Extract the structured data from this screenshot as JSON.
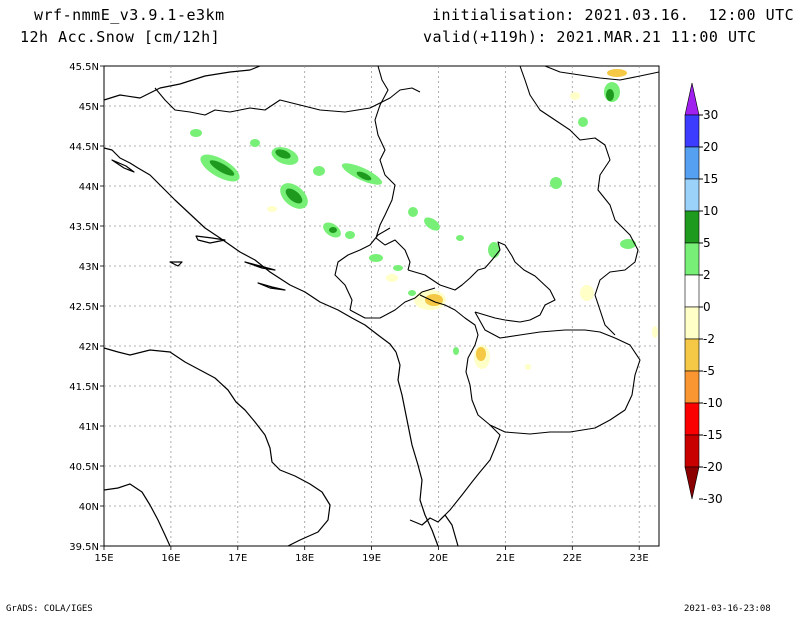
{
  "header": {
    "model": "wrf-nmmE_v3.9.1-e3km",
    "field": "12h Acc.Snow [cm/12h]",
    "init": "initialisation: 2021.03.16.  12:00 UTC",
    "valid": "valid(+119h): 2021.MAR.21 11:00 UTC"
  },
  "footer": {
    "left": "GrADS: COLA/IGES",
    "right": "2021-03-16-23:08"
  },
  "map": {
    "lat_labels": [
      "45.5N",
      "45N",
      "44.5N",
      "44N",
      "43.5N",
      "43N",
      "42.5N",
      "42N",
      "41.5N",
      "41N",
      "40.5N",
      "40N",
      "39.5N"
    ],
    "lon_labels": [
      "15E",
      "16E",
      "17E",
      "18E",
      "19E",
      "20E",
      "21E",
      "22E",
      "23E"
    ]
  },
  "colorbar": {
    "labels": [
      "30",
      "20",
      "15",
      "10",
      "5",
      "2",
      "0",
      "-2",
      "-5",
      "-10",
      "-15",
      "-20",
      "-30"
    ],
    "colors": [
      "#a020f0",
      "#3c3cff",
      "#55a0f0",
      "#9bd2fa",
      "#1e9b1e",
      "#78f078",
      "#ffffff",
      "#ffffc8",
      "#f5c846",
      "#fa9632",
      "#fa0000",
      "#c80000",
      "#8b0000"
    ]
  }
}
